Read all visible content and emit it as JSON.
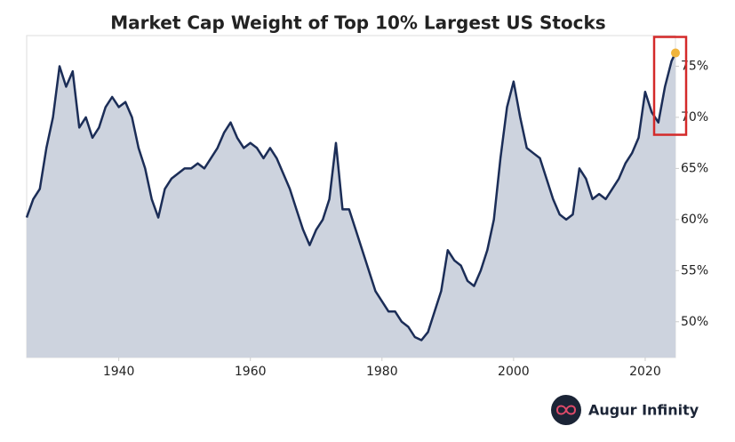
{
  "chart_data": {
    "type": "area",
    "title": "Market Cap Weight of Top 10% Largest US Stocks",
    "x": [
      1926,
      1927,
      1928,
      1929,
      1930,
      1931,
      1932,
      1933,
      1934,
      1935,
      1936,
      1937,
      1938,
      1939,
      1940,
      1941,
      1942,
      1943,
      1944,
      1945,
      1946,
      1947,
      1948,
      1949,
      1950,
      1951,
      1952,
      1953,
      1954,
      1955,
      1956,
      1957,
      1958,
      1959,
      1960,
      1961,
      1962,
      1963,
      1964,
      1965,
      1966,
      1967,
      1968,
      1969,
      1970,
      1971,
      1972,
      1973,
      1974,
      1975,
      1976,
      1977,
      1978,
      1979,
      1980,
      1981,
      1982,
      1983,
      1984,
      1985,
      1986,
      1987,
      1988,
      1989,
      1990,
      1991,
      1992,
      1993,
      1994,
      1995,
      1996,
      1997,
      1998,
      1999,
      2000,
      2001,
      2002,
      2003,
      2004,
      2005,
      2006,
      2007,
      2008,
      2009,
      2010,
      2011,
      2012,
      2013,
      2014,
      2015,
      2016,
      2017,
      2018,
      2019,
      2020,
      2021,
      2022,
      2023,
      2024,
      2024.6
    ],
    "values": [
      60.2,
      62,
      63,
      67,
      70,
      75,
      73,
      74.5,
      69,
      70,
      68,
      69,
      71,
      72,
      71,
      71.5,
      70,
      67,
      65,
      62,
      60.2,
      63,
      64,
      64.5,
      65,
      65,
      65.5,
      65,
      66,
      67,
      68.5,
      69.5,
      68,
      67,
      67.5,
      67,
      66,
      67,
      66,
      64.5,
      63,
      61,
      59,
      57.5,
      59,
      60,
      62,
      67.5,
      61,
      61,
      59,
      57,
      55,
      53,
      52,
      51,
      51,
      50,
      49.5,
      48.5,
      48.2,
      49,
      51,
      53,
      57,
      56,
      55.5,
      54,
      53.5,
      55,
      57,
      60,
      66,
      71,
      73.5,
      70,
      67,
      66.5,
      66,
      64,
      62,
      60.5,
      60,
      60.5,
      65,
      64,
      62,
      62.5,
      62,
      63,
      64,
      65.5,
      66.5,
      68,
      72.5,
      70.5,
      69.5,
      73,
      75.5,
      76.3
    ],
    "color": "#1b2d57",
    "fill": "#cdd3de",
    "marker_color": "#f0b43c",
    "highlight_color": "#d42a2a",
    "xlim": [
      1926,
      2024.6
    ],
    "xticks": [
      1940,
      1960,
      1980,
      2000,
      2020
    ],
    "ylim": [
      46.5,
      78
    ],
    "yticks": [
      {
        "value": 50,
        "label": "50%"
      },
      {
        "value": 55,
        "label": "55%"
      },
      {
        "value": 60,
        "label": "60%"
      },
      {
        "value": 65,
        "label": "65%"
      },
      {
        "value": 70,
        "label": "70%"
      },
      {
        "value": 75,
        "label": "75%"
      }
    ]
  },
  "brand": "Augur Infinity"
}
